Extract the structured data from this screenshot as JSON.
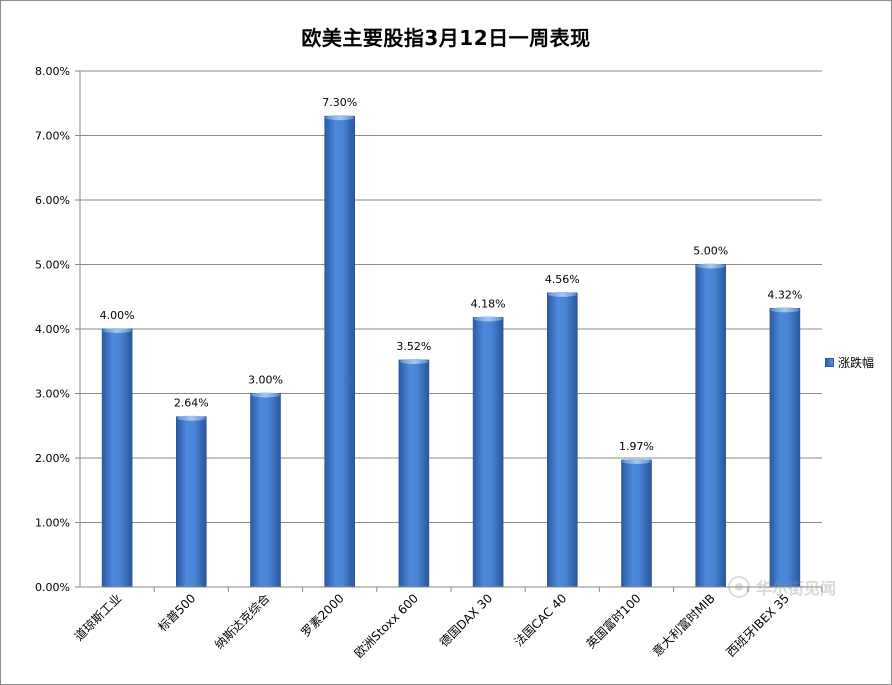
{
  "chart_data": {
    "type": "bar",
    "title": "欧美主要股指3月12日一周表现",
    "categories": [
      "道琼斯工业",
      "标普500",
      "纳斯达克综合",
      "罗素2000",
      "欧洲Stoxx 600",
      "德国DAX 30",
      "法国CAC 40",
      "英国富时100",
      "意大利富时MIB",
      "西班牙IBEX 35"
    ],
    "series": [
      {
        "name": "涨跌幅",
        "values": [
          4.0,
          2.64,
          3.0,
          7.3,
          3.52,
          4.18,
          4.56,
          1.97,
          5.0,
          4.32
        ]
      }
    ],
    "data_labels": [
      "4.00%",
      "2.64%",
      "3.00%",
      "7.30%",
      "3.52%",
      "4.18%",
      "4.56%",
      "1.97%",
      "5.00%",
      "4.32%"
    ],
    "y_ticks": [
      "0.00%",
      "1.00%",
      "2.00%",
      "3.00%",
      "4.00%",
      "5.00%",
      "6.00%",
      "7.00%",
      "8.00%"
    ],
    "ylim": [
      0,
      8
    ],
    "xlabel": "",
    "ylabel": "",
    "grid": true,
    "legend_position": "right",
    "bar_color": "#3f7ad0"
  },
  "watermark": {
    "text": "华尔街见闻"
  }
}
